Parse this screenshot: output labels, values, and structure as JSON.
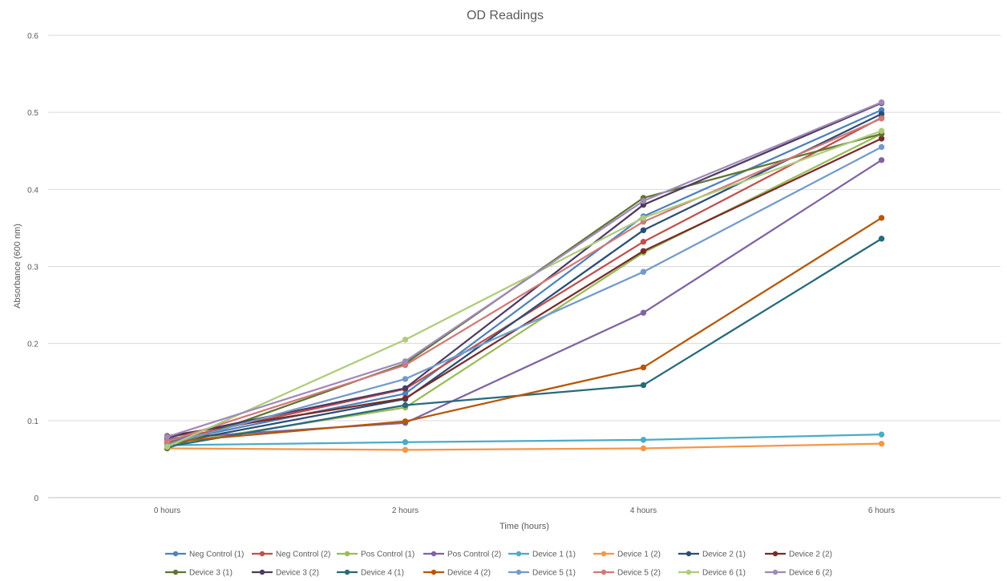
{
  "chart_data": {
    "type": "line",
    "title": "OD Readings",
    "xlabel": "Time (hours)",
    "ylabel": "Absorbance (600 nm)",
    "categories": [
      "0 hours",
      "2 hours",
      "4 hours",
      "6 hours"
    ],
    "ylim": [
      0,
      0.6
    ],
    "yticks": [
      "0",
      "0.1",
      "0.2",
      "0.3",
      "0.4",
      "0.5",
      "0.6"
    ],
    "grid": "horizontal",
    "legend": "bottom",
    "series": [
      {
        "name": "Neg Control (1)",
        "color": "#4f81bd",
        "values": [
          0.072,
          0.135,
          0.365,
          0.503
        ]
      },
      {
        "name": "Neg Control (2)",
        "color": "#c0504d",
        "values": [
          0.074,
          0.141,
          0.332,
          0.493
        ]
      },
      {
        "name": "Pos Control (1)",
        "color": "#9bbb59",
        "values": [
          0.069,
          0.117,
          0.318,
          0.472
        ]
      },
      {
        "name": "Pos Control (2)",
        "color": "#8064a2",
        "values": [
          0.077,
          0.097,
          0.24,
          0.438
        ]
      },
      {
        "name": "Device 1 (1)",
        "color": "#4bacc6",
        "values": [
          0.068,
          0.072,
          0.075,
          0.082
        ]
      },
      {
        "name": "Device 1 (2)",
        "color": "#f79646",
        "values": [
          0.064,
          0.062,
          0.064,
          0.07
        ]
      },
      {
        "name": "Device 2 (1)",
        "color": "#2c4d75",
        "values": [
          0.07,
          0.128,
          0.347,
          0.498
        ]
      },
      {
        "name": "Device 2 (2)",
        "color": "#772c2a",
        "values": [
          0.08,
          0.129,
          0.32,
          0.466
        ]
      },
      {
        "name": "Device 3 (1)",
        "color": "#5f7530",
        "values": [
          0.064,
          0.174,
          0.389,
          0.472
        ]
      },
      {
        "name": "Device 3 (2)",
        "color": "#4d3b62",
        "values": [
          0.078,
          0.142,
          0.38,
          0.512
        ]
      },
      {
        "name": "Device 4 (1)",
        "color": "#276a7c",
        "values": [
          0.066,
          0.12,
          0.146,
          0.336
        ]
      },
      {
        "name": "Device 4 (2)",
        "color": "#b65708",
        "values": [
          0.072,
          0.099,
          0.169,
          0.363
        ]
      },
      {
        "name": "Device 5 (1)",
        "color": "#729aca",
        "values": [
          0.069,
          0.154,
          0.293,
          0.455
        ]
      },
      {
        "name": "Device 5 (2)",
        "color": "#d07a78",
        "values": [
          0.073,
          0.172,
          0.358,
          0.492
        ]
      },
      {
        "name": "Device 6 (1)",
        "color": "#afcb7b",
        "values": [
          0.066,
          0.205,
          0.363,
          0.476
        ]
      },
      {
        "name": "Device 6 (2)",
        "color": "#a08ab8",
        "values": [
          0.079,
          0.177,
          0.385,
          0.513
        ]
      }
    ]
  }
}
